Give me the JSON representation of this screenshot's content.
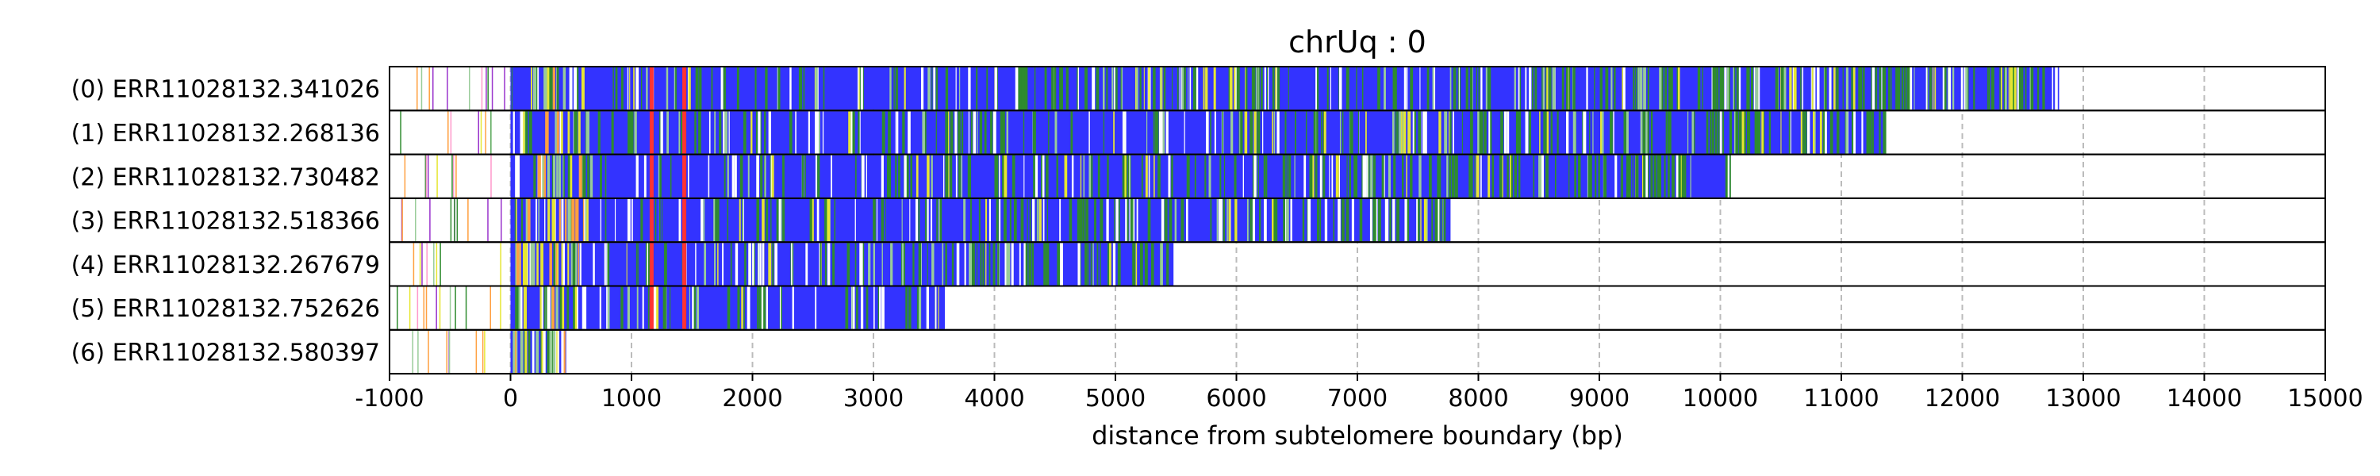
{
  "chart_data": {
    "type": "bar",
    "title": "chrUq : 0",
    "xlabel": "distance from subtelomere boundary (bp)",
    "ylabel": "",
    "xlim": [
      -1000,
      15000
    ],
    "xticks": [
      -1000,
      0,
      1000,
      2000,
      3000,
      4000,
      5000,
      6000,
      7000,
      8000,
      9000,
      10000,
      11000,
      12000,
      13000,
      14000,
      15000
    ],
    "grid": "x-dashed",
    "colors": {
      "bar": "#3333ff",
      "green": "#2e8b2e",
      "yellow": "#e6e632",
      "red": "#ff3333",
      "orange": "#ffa040",
      "white": "#ffffff",
      "pink": "#ff99cc",
      "purple": "#9933cc",
      "light_green": "#99cc99",
      "grid": "#bbbbbb"
    },
    "reads": [
      {
        "label": "(0) ERR11028132.341026",
        "start": 0,
        "end": 12800
      },
      {
        "label": "(1) ERR11028132.268136",
        "start": 0,
        "end": 11350
      },
      {
        "label": "(2) ERR11028132.730482",
        "start": 0,
        "end": 10080
      },
      {
        "label": "(3) ERR11028132.518366",
        "start": 0,
        "end": 7770
      },
      {
        "label": "(4) ERR11028132.267679",
        "start": 0,
        "end": 5480
      },
      {
        "label": "(5) ERR11028132.752626",
        "start": 0,
        "end": 3590
      },
      {
        "label": "(6) ERR11028132.580397",
        "start": 0,
        "end": 460
      }
    ]
  }
}
